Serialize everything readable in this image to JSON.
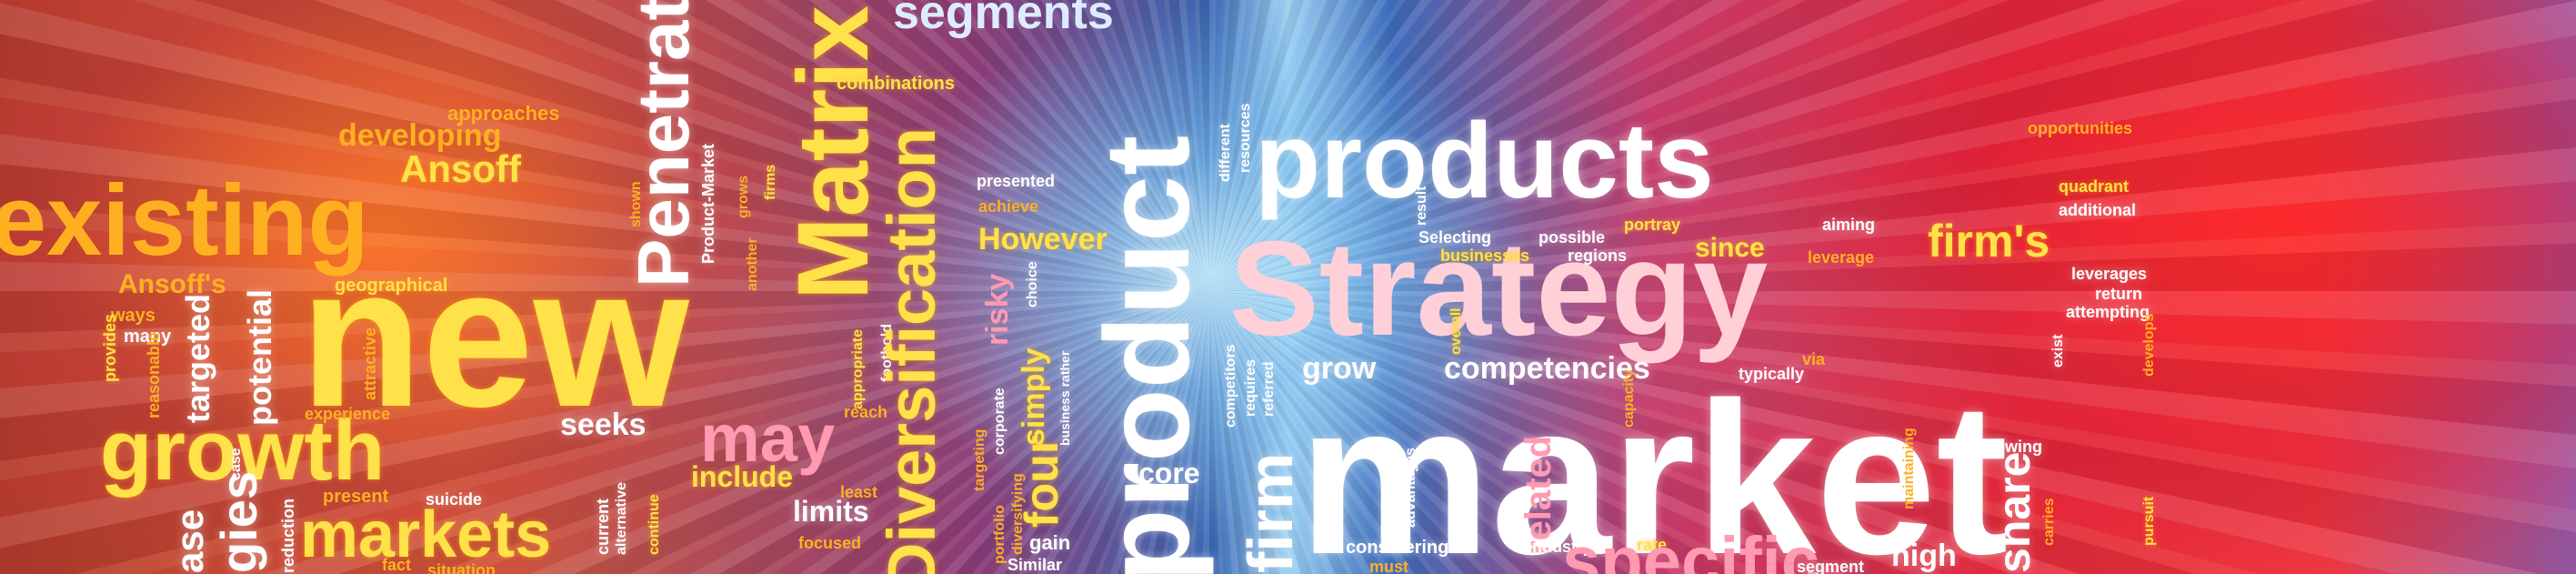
{
  "words": {
    "segments": "segments",
    "approaches": "approaches",
    "developing": "developing",
    "ansoff": "Ansoff",
    "existing": "existing",
    "ansoffs": "Ansoff's",
    "ways": "ways",
    "many": "many",
    "new": "new",
    "geographical": "geographical",
    "growth": "growth",
    "markets": "markets",
    "present": "present",
    "suicide": "suicide",
    "fact": "fact",
    "situation": "situation",
    "seeks": "seeks",
    "may": "may",
    "include": "include",
    "least": "least",
    "limits": "limits",
    "focused": "focused",
    "reach": "reach",
    "penetration": "Penetrati",
    "matrix": "Matrix",
    "combinations": "combinations",
    "diversification": "Diversification",
    "presented": "presented",
    "achieve": "achieve",
    "however": "However",
    "product": "product",
    "four": "four",
    "simply": "simply",
    "core": "core",
    "gain": "gain",
    "similar": "Similar",
    "products": "products",
    "strategy": "Strategy",
    "market": "market",
    "specific": "specific",
    "firms": "firm's",
    "firm": "firm",
    "since": "since",
    "competencies": "competencies",
    "grow": "grow",
    "typically": "typically",
    "via": "via",
    "related": "related",
    "share": "share",
    "opportunities": "opportunities",
    "quadrant": "quadrant",
    "additional": "additional",
    "leverages": "leverages",
    "return": "return",
    "attempting": "attempting",
    "aiming": "aiming",
    "portray": "portray",
    "leverage": "leverage",
    "selecting": "Selecting",
    "possible": "possible",
    "businesses": "businesses",
    "regions": "regions",
    "considering": "considering",
    "must": "must",
    "industry": "industry",
    "rate": "rate",
    "high": "high",
    "segment": "segment",
    "growing": "growing",
    "maintaining": "maintaining",
    "carries": "carries",
    "pursuit": "pursuit",
    "develops": "develops",
    "exist": "exist",
    "capacity": "capacity",
    "advantages": "advantages",
    "overall": "overall",
    "result": "result",
    "competitors": "competitors",
    "requires": "requires",
    "referred": "referred",
    "resources": "resources",
    "different": "different",
    "targeted": "targeted",
    "potential": "potential",
    "attractive": "attractive",
    "experience": "experience",
    "provides": "provides",
    "reasonable": "reasonable",
    "strategies": "gies",
    "increase": "ase",
    "case": "case",
    "reduction": "reduction",
    "shown": "shown",
    "product_market": "Product-Market",
    "another": "another",
    "grows": "grows",
    "firms_small": "firms",
    "current": "current",
    "alternative": "alternative",
    "continue": "continue",
    "appropriate": "appropriate",
    "foothold": "foothold",
    "risky": "risky",
    "choice": "choice",
    "business_rather": "business rather",
    "targeting": "targeting",
    "corporate": "corporate",
    "diversifying": "diversifying",
    "portfolio": "portfolio"
  },
  "colors": {
    "yellow": "#ffe14a",
    "orange": "#ffb020",
    "white": "#ffffff",
    "pink": "#ff9ab0",
    "light_blue": "#dcecff"
  }
}
